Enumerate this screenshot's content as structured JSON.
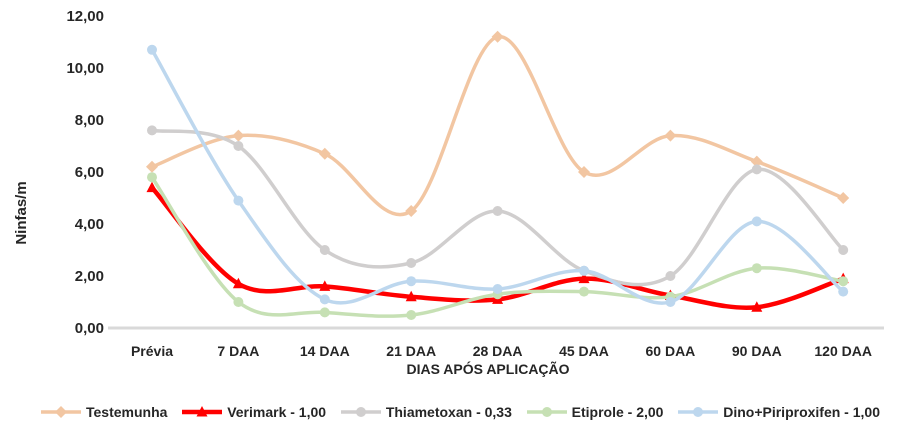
{
  "chart_data": {
    "type": "line",
    "smooth": true,
    "grid": false,
    "legend_position": "bottom",
    "ylabel": "Ninfas/m",
    "xlabel": "DIAS APÓS APLICAÇÃO",
    "ylim": [
      0,
      12
    ],
    "y_ticks": [
      "0,00",
      "2,00",
      "4,00",
      "6,00",
      "8,00",
      "10,00",
      "12,00"
    ],
    "y_tick_values": [
      0,
      2,
      4,
      6,
      8,
      10,
      12
    ],
    "categories": [
      "Prévia",
      "7 DAA",
      "14 DAA",
      "21 DAA",
      "28 DAA",
      "45 DAA",
      "60 DAA",
      "90 DAA",
      "120 DAA"
    ],
    "series": [
      {
        "name": "Testemunha",
        "color": "#F2C6A2",
        "marker": "diamond",
        "line_width": 3.5,
        "values": [
          6.2,
          7.4,
          6.7,
          4.5,
          11.2,
          6.0,
          7.4,
          6.4,
          5.0
        ]
      },
      {
        "name": "Verimark - 1,00",
        "color": "#FF0000",
        "marker": "triangle",
        "line_width": 4.5,
        "values": [
          5.4,
          1.7,
          1.6,
          1.2,
          1.1,
          1.9,
          1.25,
          0.8,
          1.9
        ]
      },
      {
        "name": "Thiametoxan - 0,33",
        "color": "#D0CECE",
        "marker": "circle",
        "line_width": 3.5,
        "values": [
          7.6,
          7.0,
          3.0,
          2.5,
          4.5,
          2.2,
          2.0,
          6.1,
          3.0
        ]
      },
      {
        "name": "Etiprole - 2,00",
        "color": "#C6E0B4",
        "marker": "circle",
        "line_width": 3.5,
        "values": [
          5.8,
          1.0,
          0.6,
          0.5,
          1.3,
          1.4,
          1.2,
          2.3,
          1.8
        ]
      },
      {
        "name": "Dino+Piriproxifen - 1,00",
        "color": "#BDD7EE",
        "marker": "circle",
        "line_width": 3.5,
        "values": [
          10.7,
          4.9,
          1.1,
          1.8,
          1.5,
          2.2,
          1.0,
          4.1,
          1.4
        ]
      }
    ],
    "axis_line_color": "#D9D9D9",
    "text_color": "#262626"
  }
}
